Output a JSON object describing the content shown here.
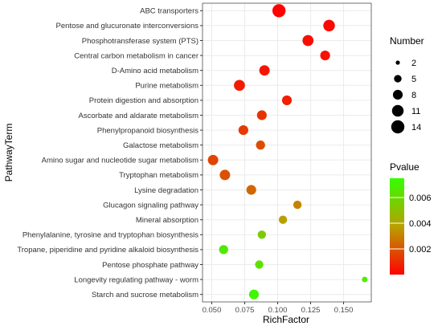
{
  "chart_data": {
    "type": "scatter",
    "xlabel": "RichFactor",
    "ylabel": "PathwayTerm",
    "xlim": [
      0.043,
      0.171
    ],
    "xticks": [
      "0.050",
      "0.075",
      "0.100",
      "0.125",
      "0.150"
    ],
    "xtick_values": [
      0.05,
      0.075,
      0.1,
      0.125,
      0.15
    ],
    "grid": true,
    "legend_position": "right",
    "points": [
      {
        "term": "ABC transporters",
        "rich_factor": 0.101,
        "number": 14,
        "pvalue": 0.0001
      },
      {
        "term": "Pentose and glucuronate interconversions",
        "rich_factor": 0.139,
        "number": 11,
        "pvalue": 0.0002
      },
      {
        "term": "Phosphotransferase system (PTS)",
        "rich_factor": 0.123,
        "number": 10,
        "pvalue": 0.0003
      },
      {
        "term": "Central carbon metabolism in cancer",
        "rich_factor": 0.136,
        "number": 8,
        "pvalue": 0.0004
      },
      {
        "term": "D-Amino acid metabolism",
        "rich_factor": 0.09,
        "number": 9,
        "pvalue": 0.0005
      },
      {
        "term": "Purine metabolism",
        "rich_factor": 0.071,
        "number": 10,
        "pvalue": 0.0006
      },
      {
        "term": "Protein digestion and absorption",
        "rich_factor": 0.107,
        "number": 8,
        "pvalue": 0.0007
      },
      {
        "term": "Ascorbate and aldarate metabolism",
        "rich_factor": 0.088,
        "number": 8,
        "pvalue": 0.0012
      },
      {
        "term": "Phenylpropanoid biosynthesis",
        "rich_factor": 0.074,
        "number": 8,
        "pvalue": 0.0014
      },
      {
        "term": "Galactose metabolism",
        "rich_factor": 0.087,
        "number": 7,
        "pvalue": 0.0018
      },
      {
        "term": "Amino sugar and nucleotide sugar metabolism",
        "rich_factor": 0.051,
        "number": 9,
        "pvalue": 0.0016
      },
      {
        "term": "Tryptophan metabolism",
        "rich_factor": 0.06,
        "number": 9,
        "pvalue": 0.0019
      },
      {
        "term": "Lysine degradation",
        "rich_factor": 0.08,
        "number": 8,
        "pvalue": 0.0024
      },
      {
        "term": "Glucagon signaling pathway",
        "rich_factor": 0.115,
        "number": 6,
        "pvalue": 0.0031
      },
      {
        "term": "Mineral absorption",
        "rich_factor": 0.104,
        "number": 6,
        "pvalue": 0.0038
      },
      {
        "term": "Phenylalanine, tyrosine and tryptophan biosynthesis",
        "rich_factor": 0.088,
        "number": 6,
        "pvalue": 0.0055
      },
      {
        "term": "Tropane, piperidine and pyridine alkaloid biosynthesis",
        "rich_factor": 0.059,
        "number": 7,
        "pvalue": 0.0066
      },
      {
        "term": "Pentose phosphate pathway",
        "rich_factor": 0.086,
        "number": 6,
        "pvalue": 0.0063
      },
      {
        "term": "Longevity regulating pathway - worm",
        "rich_factor": 0.166,
        "number": 3,
        "pvalue": 0.0068
      },
      {
        "term": "Starch and sucrose metabolism",
        "rich_factor": 0.082,
        "number": 8,
        "pvalue": 0.0072
      }
    ],
    "size_legend": {
      "title": "Number",
      "labels": [
        "2",
        "5",
        "8",
        "11",
        "14"
      ],
      "values": [
        2,
        5,
        8,
        11,
        14
      ]
    },
    "color_legend": {
      "title": "Pvalue",
      "labels": [
        "0.006",
        "0.004",
        "0.002"
      ],
      "values": [
        0.006,
        0.004,
        0.002
      ],
      "range": [
        0.0,
        0.0075
      ],
      "low_color": "#ff0000",
      "high_color": "#33ff00"
    },
    "colors": {
      "panel_background": "#ffffff",
      "grid": "#ebebeb",
      "panel_border": "#4d4d4d"
    }
  }
}
